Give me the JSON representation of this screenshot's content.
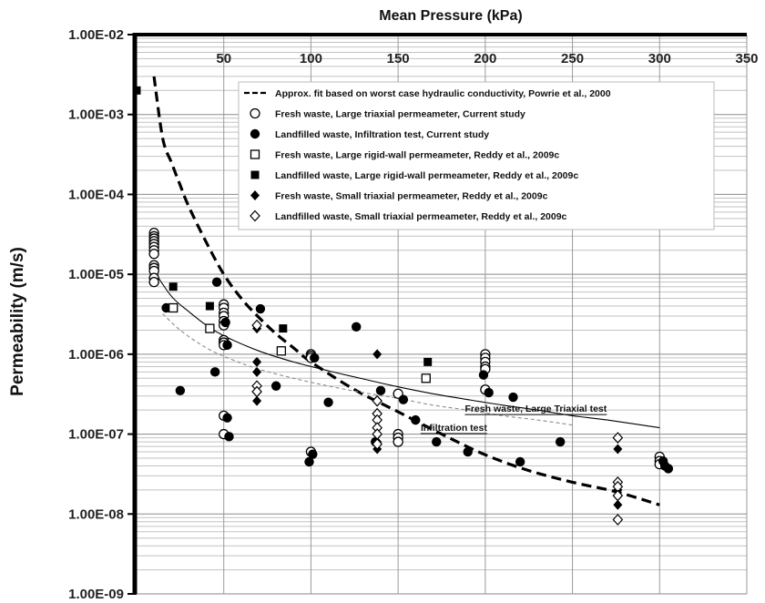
{
  "chart_data": {
    "type": "scatter",
    "title": "",
    "xlabel": "Mean Pressure (kPa)",
    "ylabel": "Permeability (m/s)",
    "xlim": [
      0,
      350
    ],
    "ylim": [
      1e-09,
      0.01
    ],
    "y_scale": "log",
    "x_axis_position": "top",
    "grid": true,
    "legend_position": "top-right",
    "x_ticks": [
      50,
      100,
      150,
      200,
      250,
      300,
      350
    ],
    "y_ticks": [
      1e-09,
      1e-08,
      1e-07,
      1e-06,
      1e-05,
      0.0001,
      0.001,
      0.01
    ],
    "y_tick_labels": [
      "1.00E-09",
      "1.00E-08",
      "1.00E-07",
      "1.00E-06",
      "1.00E-05",
      "1.00E-04",
      "1.00E-03",
      "1.00E-02"
    ],
    "series": [
      {
        "name": "Approx. fit based on worst case hydraulic conductivity, Powrie et al., 2000",
        "kind": "line",
        "style": "dashed-thick",
        "x": [
          10,
          15,
          20,
          25,
          30,
          40,
          50,
          60,
          70,
          80,
          90,
          100,
          125,
          150,
          175,
          200,
          225,
          250,
          275,
          300
        ],
        "y": [
          0.003,
          0.0005,
          0.00025,
          0.00013,
          7e-05,
          2.5e-05,
          1e-05,
          5e-06,
          2.9e-06,
          1.8e-06,
          1.2e-06,
          8e-07,
          3.6e-07,
          1.9e-07,
          1e-07,
          5.5e-08,
          3.5e-08,
          2.5e-08,
          1.9e-08,
          1.3e-08
        ]
      },
      {
        "name": "Fresh waste, Large triaxial permeameter, Current study",
        "kind": "marker",
        "marker": "open-circle",
        "x": [
          10,
          10,
          10,
          10,
          10,
          10,
          10,
          10,
          10,
          10,
          10,
          10,
          10,
          50,
          50,
          50,
          50,
          50,
          50,
          50,
          50,
          50,
          50,
          50,
          100,
          100,
          100,
          100,
          150,
          150,
          150,
          150,
          200,
          200,
          200,
          200,
          200,
          200,
          300,
          300,
          300
        ],
        "y": [
          3.3e-05,
          3e-05,
          2.8e-05,
          2.6e-05,
          2.4e-05,
          2.2e-05,
          2e-05,
          1.8e-05,
          1.3e-05,
          1.2e-05,
          1.1e-05,
          9e-06,
          8e-06,
          4.2e-06,
          3.8e-06,
          3.3e-06,
          3e-06,
          2.6e-06,
          2.3e-06,
          1.5e-06,
          1.4e-06,
          1.3e-06,
          1.7e-07,
          1e-07,
          1e-06,
          9.5e-07,
          9e-07,
          6e-08,
          3.2e-07,
          1e-07,
          9e-08,
          8e-08,
          1e-06,
          9e-07,
          8e-07,
          7e-07,
          6.5e-07,
          3.6e-07,
          5.2e-08,
          4.6e-08,
          4.2e-08
        ]
      },
      {
        "name": "Landfilled waste, Infiltration test, Current study",
        "kind": "marker",
        "marker": "filled-circle",
        "x": [
          17,
          25,
          45,
          46,
          51,
          52,
          52,
          53,
          71,
          80,
          99,
          101,
          102,
          110,
          126,
          137,
          140,
          153,
          160,
          172,
          190,
          199,
          202,
          216,
          220,
          243,
          302,
          303,
          305
        ],
        "y": [
          3.8e-06,
          3.5e-07,
          6e-07,
          8e-06,
          2.5e-06,
          1.6e-07,
          1.3e-06,
          9.3e-08,
          3.7e-06,
          4e-07,
          4.5e-08,
          5.6e-08,
          9e-07,
          2.5e-07,
          2.2e-06,
          8e-08,
          3.5e-07,
          2.7e-07,
          1.5e-07,
          8e-08,
          6e-08,
          5.5e-07,
          3.3e-07,
          2.9e-07,
          4.5e-08,
          8e-08,
          4.6e-08,
          4e-08,
          3.7e-08
        ]
      },
      {
        "name": "Fresh waste, Large rigid-wall permeameter, Reddy et al., 2009c",
        "kind": "marker",
        "marker": "open-square",
        "x": [
          21,
          42,
          83,
          166
        ],
        "y": [
          3.8e-06,
          2.1e-06,
          1.1e-06,
          5e-07
        ]
      },
      {
        "name": "Landfilled waste, Large rigid-wall permeameter, Reddy et al., 2009c",
        "kind": "marker",
        "marker": "filled-square",
        "x": [
          0,
          21,
          42,
          84,
          167
        ],
        "y": [
          0.002,
          7e-06,
          4e-06,
          2.1e-06,
          8e-07
        ]
      },
      {
        "name": "Fresh waste, Small triaxial permeameter, Reddy et al., 2009c",
        "kind": "marker",
        "marker": "filled-diamond",
        "x": [
          69,
          69,
          69,
          69,
          138,
          138,
          138,
          276,
          276,
          276
        ],
        "y": [
          2.1e-06,
          8e-07,
          6e-07,
          2.6e-07,
          1e-06,
          8e-08,
          6.5e-08,
          6.5e-08,
          2e-08,
          1.3e-08
        ]
      },
      {
        "name": "Landfilled waste, Small triaxial permeameter, Reddy et al., 2009c",
        "kind": "marker",
        "marker": "open-diamond",
        "x": [
          69,
          69,
          69,
          138,
          138,
          138,
          138,
          138,
          138,
          276,
          276,
          276,
          276,
          276
        ],
        "y": [
          2.3e-06,
          4e-07,
          3.4e-07,
          2.6e-07,
          1.8e-07,
          1.5e-07,
          1.2e-07,
          1e-07,
          7.5e-08,
          9e-08,
          2.5e-08,
          2.2e-08,
          1.7e-08,
          8.5e-09
        ]
      },
      {
        "kind": "line",
        "style": "solid-thin",
        "x": [
          10,
          20,
          30,
          40,
          50,
          70,
          90,
          110,
          130,
          150,
          170,
          190,
          210,
          230,
          250,
          270,
          300
        ],
        "y": [
          1.1e-05,
          5.3e-06,
          3.4e-06,
          2.3e-06,
          1.7e-06,
          1.1e-06,
          8e-07,
          6.2e-07,
          4.9e-07,
          3.9e-07,
          3.2e-07,
          2.7e-07,
          2.3e-07,
          2e-07,
          1.7e-07,
          1.5e-07,
          1.2e-07
        ]
      },
      {
        "kind": "line",
        "style": "dashed-thin",
        "x": [
          15,
          25,
          40,
          55,
          70,
          90,
          110,
          130,
          150,
          170,
          190,
          210,
          230,
          250
        ],
        "y": [
          3.2e-06,
          2e-06,
          1.2e-06,
          8.5e-07,
          6.5e-07,
          5e-07,
          4e-07,
          3.3e-07,
          2.8e-07,
          2.3e-07,
          2e-07,
          1.7e-07,
          1.5e-07,
          1.3e-07
        ]
      }
    ],
    "annotations": [
      {
        "text": "Fresh waste,  Large Triaxial test",
        "x": 229,
        "y": 1.9e-07
      },
      {
        "text": "Infiltration test",
        "x": 182,
        "y": 1.1e-07
      }
    ]
  }
}
